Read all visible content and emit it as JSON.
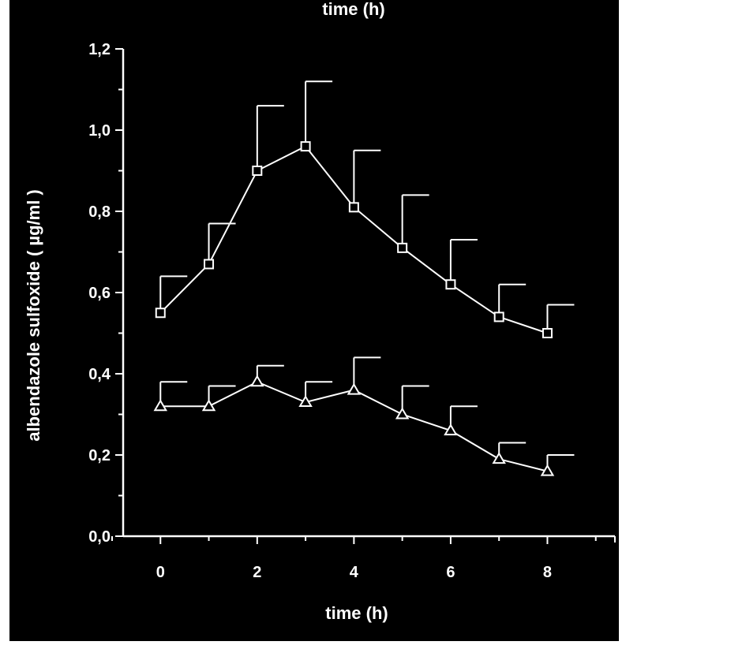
{
  "chart_data": {
    "type": "line",
    "top_caption": "time (h)",
    "xlabel": "time (h)",
    "ylabel": "albendazole sulfoxide ( µg/ml )",
    "xlim": [
      -1,
      9.2
    ],
    "ylim": [
      0,
      1.2
    ],
    "x_ticks": [
      0,
      2,
      4,
      6,
      8
    ],
    "x_tick_labels": [
      "0",
      "2",
      "4",
      "6",
      "8"
    ],
    "y_ticks": [
      0.0,
      0.2,
      0.4,
      0.6,
      0.8,
      1.0,
      1.2
    ],
    "y_tick_labels": [
      "0,0",
      "0,2",
      "0,4",
      "0,6",
      "0,8",
      "1,0",
      "1,2"
    ],
    "x": [
      0,
      1,
      2,
      3,
      4,
      5,
      6,
      7,
      8
    ],
    "grid": false,
    "legend": "none",
    "colors": {
      "background": "#000000",
      "foreground": "#ffffff"
    },
    "series": [
      {
        "marker": "square",
        "values": [
          0.55,
          0.67,
          0.9,
          0.96,
          0.81,
          0.71,
          0.62,
          0.54,
          0.5
        ],
        "error_upper": [
          0.64,
          0.77,
          1.06,
          1.12,
          0.95,
          0.84,
          0.73,
          0.62,
          0.57
        ]
      },
      {
        "marker": "triangle",
        "values": [
          0.32,
          0.32,
          0.38,
          0.33,
          0.36,
          0.3,
          0.26,
          0.19,
          0.16
        ],
        "error_upper": [
          0.38,
          0.37,
          0.42,
          0.38,
          0.44,
          0.37,
          0.32,
          0.23,
          0.2
        ]
      }
    ]
  }
}
